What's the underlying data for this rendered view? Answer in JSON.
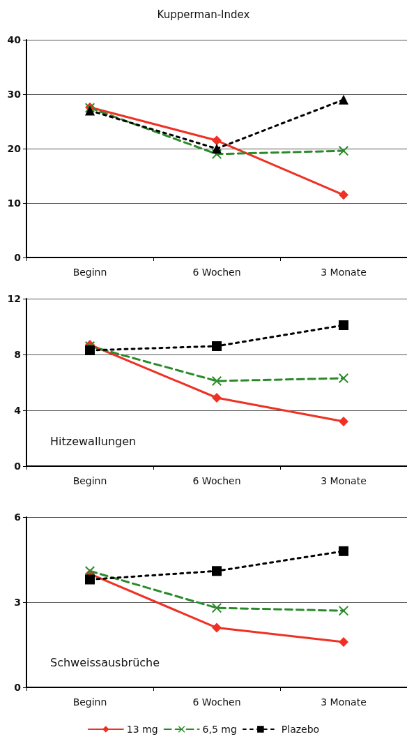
{
  "chart_data": [
    {
      "type": "line",
      "title": "Kupperman-Index",
      "categories": [
        "Beginn",
        "6 Wochen",
        "3 Monate"
      ],
      "ylim": [
        0,
        40
      ],
      "yticks": [
        0,
        10,
        20,
        30,
        40
      ],
      "grid": "y",
      "legend": false,
      "series": [
        {
          "color": "#ee3124",
          "marker": "diamond",
          "line_style": "solid",
          "values": [
            27.6,
            21.5,
            11.5
          ]
        },
        {
          "color": "#2a8a2a",
          "marker": "cross",
          "line_style": "dashed",
          "values": [
            27.5,
            19,
            19.6
          ]
        },
        {
          "color": "#000000",
          "marker": "triangle",
          "line_style": "dotted",
          "values": [
            27,
            20,
            29
          ]
        }
      ]
    },
    {
      "type": "line",
      "annotations": [
        "Hitzewallungen"
      ],
      "categories": [
        "Beginn",
        "6 Wochen",
        "3 Monate"
      ],
      "ylim": [
        0,
        12
      ],
      "yticks": [
        0,
        4,
        8,
        12
      ],
      "grid": "y",
      "legend": false,
      "series": [
        {
          "color": "#ee3124",
          "marker": "diamond",
          "line_style": "solid",
          "values": [
            8.7,
            4.9,
            3.2
          ]
        },
        {
          "color": "#2a8a2a",
          "marker": "cross",
          "line_style": "dashed",
          "values": [
            8.6,
            6.1,
            6.3
          ]
        },
        {
          "color": "#000000",
          "marker": "square",
          "line_style": "dotted",
          "values": [
            8.3,
            8.6,
            10.1
          ]
        }
      ]
    },
    {
      "type": "line",
      "annotations": [
        "Schweissausbrüche"
      ],
      "categories": [
        "Beginn",
        "6 Wochen",
        "3 Monate"
      ],
      "ylim": [
        0,
        6
      ],
      "yticks": [
        0,
        3,
        6
      ],
      "grid": "y",
      "legend": "bottom",
      "series": [
        {
          "name": "13 mg",
          "color": "#ee3124",
          "marker": "diamond",
          "line_style": "solid",
          "values": [
            4.0,
            2.1,
            1.6
          ]
        },
        {
          "name": "6,5 mg",
          "color": "#2a8a2a",
          "marker": "cross",
          "line_style": "dashed",
          "values": [
            4.1,
            2.8,
            2.7
          ]
        },
        {
          "name": "Plazebo",
          "color": "#000000",
          "marker": "square",
          "line_style": "dotted",
          "values": [
            3.8,
            4.1,
            4.8
          ]
        }
      ]
    }
  ]
}
